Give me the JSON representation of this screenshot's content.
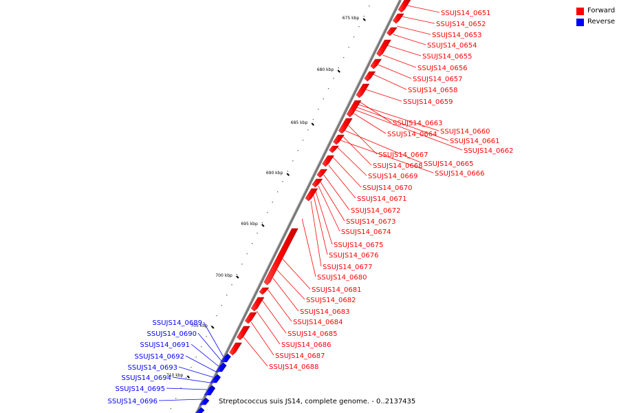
{
  "legend": {
    "forward_label": "Forward",
    "reverse_label": "Reverse",
    "forward_color": "#ff0000",
    "reverse_color": "#0000ff"
  },
  "caption": "Streptococcus suis JS14, complete genome. - 0..2137435",
  "axis_ticks": [
    "675 kbp",
    "680 kbp",
    "685 kbp",
    "690 kbp",
    "695 kbp",
    "700 kbp",
    "705 kbp",
    "710 kbp"
  ],
  "forward_labels": [
    "SSUJS14_0651",
    "SSUJS14_0652",
    "SSUJS14_0653",
    "SSUJS14_0654",
    "SSUJS14_0655",
    "SSUJS14_0656",
    "SSUJS14_0657",
    "SSUJS14_0658",
    "SSUJS14_0659",
    "SSUJS14_0663",
    "SSUJS14_0660",
    "SSUJS14_0664",
    "SSUJS14_0661",
    "SSUJS14_0662",
    "SSUJS14_0667",
    "SSUJS14_0665",
    "SSUJS14_0668",
    "SSUJS14_0666",
    "SSUJS14_0669",
    "SSUJS14_0670",
    "SSUJS14_0671",
    "SSUJS14_0672",
    "SSUJS14_0673",
    "SSUJS14_0674",
    "SSUJS14_0675",
    "SSUJS14_0676",
    "SSUJS14_0677",
    "SSUJS14_0680",
    "SSUJS14_0681",
    "SSUJS14_0682",
    "SSUJS14_0683",
    "SSUJS14_0684",
    "SSUJS14_0685",
    "SSUJS14_0686",
    "SSUJS14_0687",
    "SSUJS14_0688"
  ],
  "reverse_labels": [
    "SSUJS14_0689",
    "SSUJS14_0690",
    "SSUJS14_0691",
    "SSUJS14_0692",
    "SSUJS14_0693",
    "SSUJS14_0694",
    "SSUJS14_0695",
    "SSUJS14_0696"
  ]
}
